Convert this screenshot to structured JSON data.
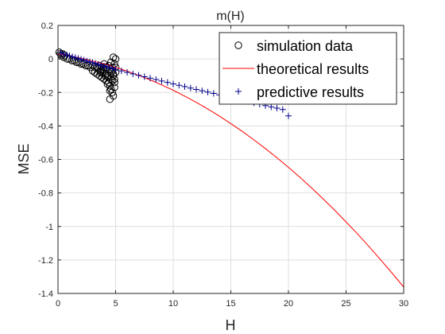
{
  "chart_data": {
    "type": "scatter",
    "title": "m(H)",
    "xlabel": "H",
    "ylabel": "MSE",
    "xlim": [
      0,
      30
    ],
    "ylim": [
      -1.4,
      0.2
    ],
    "xticks": [
      0,
      5,
      10,
      15,
      20,
      25,
      30
    ],
    "yticks": [
      0.2,
      0,
      -0.2,
      -0.4,
      -0.6,
      -0.8,
      -1,
      -1.2,
      -1.4
    ],
    "xtick_labels": [
      "0",
      "5",
      "10",
      "15",
      "20",
      "25",
      "30"
    ],
    "ytick_labels": [
      "0.2",
      "0",
      "-0.2",
      "-0.4",
      "-0.6",
      "-0.8",
      "-1",
      "-1.2",
      "-1.4"
    ],
    "grid": true,
    "legend_position": "top-right",
    "series": [
      {
        "name": "simulation data",
        "kind": "marker-circle",
        "color": "#000000",
        "x": [
          0.1,
          0.2,
          0.3,
          0.4,
          0.5,
          0.6,
          0.8,
          1.0,
          1.2,
          1.4,
          1.6,
          1.8,
          2.0,
          2.2,
          2.4,
          2.6,
          2.8,
          3.0,
          3.0,
          3.2,
          3.2,
          3.4,
          3.4,
          3.5,
          3.6,
          3.6,
          3.7,
          3.8,
          3.8,
          3.9,
          4.0,
          4.0,
          4.1,
          4.2,
          4.2,
          4.3,
          4.4,
          4.4,
          4.5,
          4.5,
          4.6,
          4.6,
          4.7,
          4.7,
          4.8,
          4.8,
          4.9,
          4.9,
          5.0,
          5.0,
          4.3,
          4.5,
          4.7,
          4.9,
          4.6,
          4.8,
          4.4,
          4.7,
          4.9,
          5.0,
          4.6,
          4.8,
          3.9,
          4.1,
          3.7,
          4.5
        ],
        "y": [
          0.04,
          0.03,
          0.02,
          0.03,
          0.01,
          0.02,
          0.0,
          0.0,
          -0.01,
          -0.01,
          -0.02,
          -0.02,
          -0.03,
          -0.03,
          -0.04,
          -0.04,
          -0.05,
          -0.04,
          -0.07,
          -0.05,
          -0.08,
          -0.05,
          -0.09,
          -0.06,
          -0.04,
          -0.1,
          -0.07,
          -0.05,
          -0.11,
          -0.08,
          -0.03,
          -0.12,
          -0.09,
          -0.05,
          -0.13,
          -0.1,
          -0.04,
          -0.14,
          -0.06,
          -0.16,
          -0.08,
          -0.18,
          -0.05,
          -0.2,
          -0.1,
          -0.22,
          -0.03,
          -0.12,
          0.0,
          -0.08,
          -0.15,
          -0.24,
          -0.13,
          -0.17,
          -0.02,
          -0.09,
          -0.11,
          -0.07,
          -0.14,
          -0.05,
          -0.12,
          0.01,
          -0.06,
          -0.1,
          -0.08,
          -0.19
        ]
      },
      {
        "name": "theoretical results",
        "kind": "line",
        "color": "#ff0000",
        "x": [
          0,
          1,
          2,
          3,
          4,
          5,
          6,
          7,
          8,
          9,
          10,
          11,
          12,
          13,
          14,
          15,
          16,
          17,
          18,
          19,
          20,
          21,
          22,
          23,
          24,
          25,
          26,
          27,
          28,
          29,
          30
        ],
        "y": [
          0.03,
          0.018,
          0.004,
          -0.012,
          -0.03,
          -0.05,
          -0.073,
          -0.098,
          -0.125,
          -0.155,
          -0.187,
          -0.222,
          -0.259,
          -0.299,
          -0.341,
          -0.386,
          -0.433,
          -0.483,
          -0.535,
          -0.59,
          -0.647,
          -0.707,
          -0.77,
          -0.835,
          -0.902,
          -0.973,
          -1.045,
          -1.121,
          -1.199,
          -1.279,
          -1.362
        ]
      },
      {
        "name": "predictive results",
        "kind": "marker-plus",
        "color": "#00008b",
        "x": [
          0.25,
          0.5,
          0.75,
          1.0,
          1.25,
          1.5,
          1.75,
          2.0,
          2.25,
          2.5,
          2.75,
          3.0,
          3.25,
          3.5,
          3.75,
          4.0,
          4.25,
          4.5,
          4.75,
          5.0,
          5.5,
          6.0,
          6.5,
          7.0,
          7.5,
          8.0,
          8.5,
          9.0,
          9.5,
          10.0,
          10.5,
          11.0,
          11.5,
          12.0,
          12.5,
          13.0,
          13.5,
          14.0,
          14.5,
          15.0,
          15.5,
          16.0,
          16.5,
          17.0,
          17.5,
          18.0,
          18.5,
          19.0,
          19.5,
          20.0
        ],
        "y": [
          0.035,
          0.029,
          0.024,
          0.019,
          0.013,
          0.008,
          0.003,
          -0.002,
          -0.007,
          -0.012,
          -0.017,
          -0.022,
          -0.027,
          -0.032,
          -0.037,
          -0.042,
          -0.047,
          -0.052,
          -0.057,
          -0.062,
          -0.071,
          -0.08,
          -0.089,
          -0.097,
          -0.106,
          -0.115,
          -0.123,
          -0.132,
          -0.14,
          -0.149,
          -0.157,
          -0.165,
          -0.174,
          -0.182,
          -0.19,
          -0.198,
          -0.206,
          -0.214,
          -0.222,
          -0.23,
          -0.238,
          -0.246,
          -0.254,
          -0.262,
          -0.27,
          -0.278,
          -0.286,
          -0.294,
          -0.302,
          -0.34
        ]
      }
    ]
  }
}
